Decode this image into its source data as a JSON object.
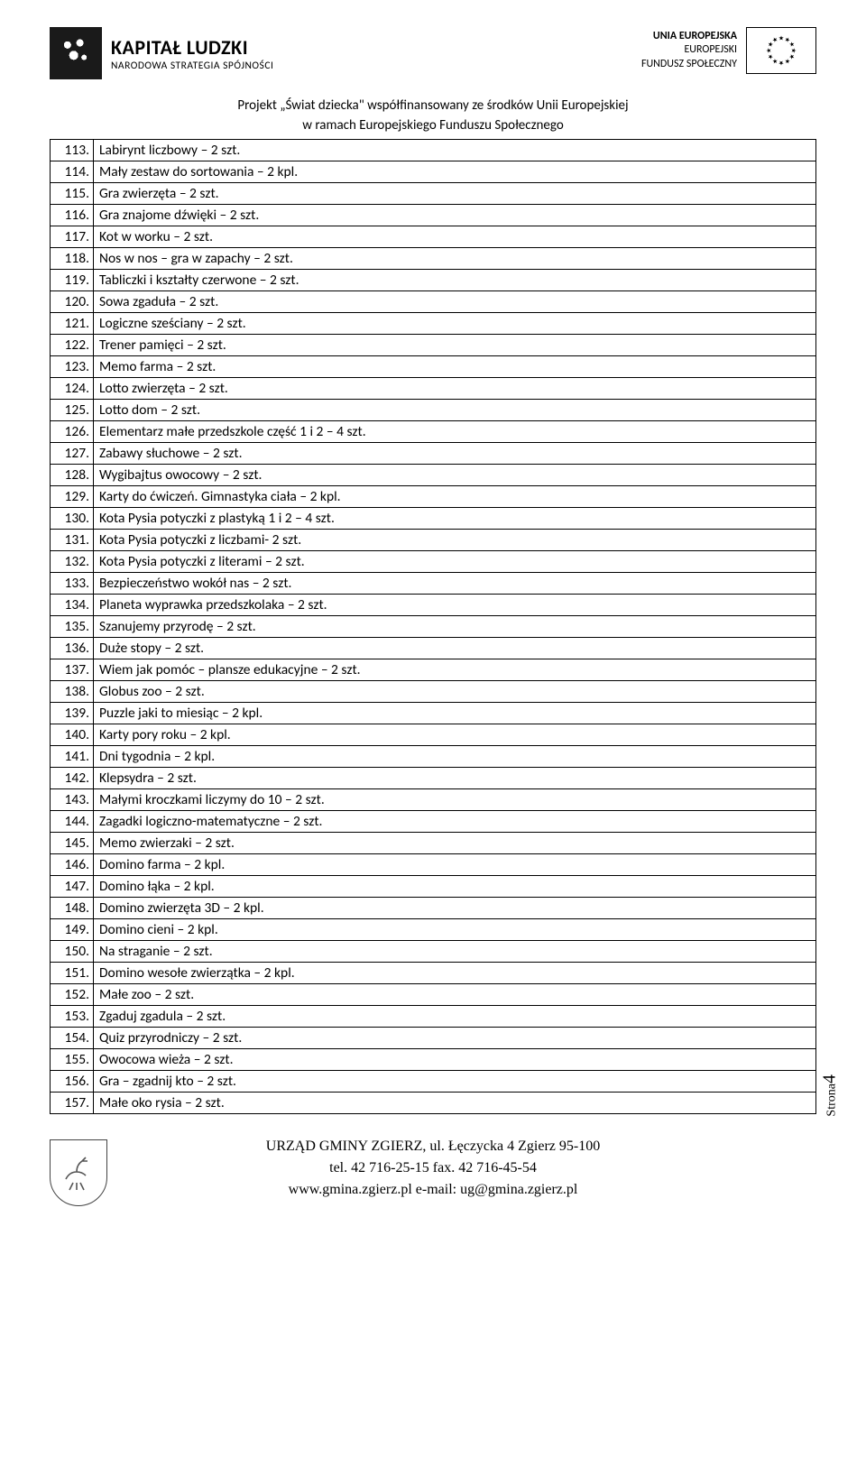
{
  "header": {
    "left_logo_title": "KAPITAŁ LUDZKI",
    "left_logo_subtitle": "NARODOWA STRATEGIA SPÓJNOŚCI",
    "right_line1": "UNIA EUROPEJSKA",
    "right_line2": "EUROPEJSKI",
    "right_line3": "FUNDUSZ SPOŁECZNY"
  },
  "project": {
    "line1": "Projekt „Świat dziecka\" współfinansowany ze środków Unii Europejskiej",
    "line2": "w ramach Europejskiego Funduszu Społecznego"
  },
  "rows": [
    {
      "n": "113.",
      "t": "Labirynt liczbowy – 2 szt."
    },
    {
      "n": "114.",
      "t": "Mały zestaw do sortowania – 2 kpl."
    },
    {
      "n": "115.",
      "t": "Gra  zwierzęta – 2 szt."
    },
    {
      "n": "116.",
      "t": "Gra  znajome dźwięki – 2 szt."
    },
    {
      "n": "117.",
      "t": "Kot w worku – 2 szt."
    },
    {
      "n": "118.",
      "t": "Nos w nos – gra w zapachy – 2 szt."
    },
    {
      "n": "119.",
      "t": "Tabliczki i kształty czerwone – 2 szt."
    },
    {
      "n": "120.",
      "t": "Sowa zgaduła – 2 szt."
    },
    {
      "n": "121.",
      "t": "Logiczne sześciany – 2 szt."
    },
    {
      "n": "122.",
      "t": "Trener pamięci – 2 szt."
    },
    {
      "n": "123.",
      "t": "Memo farma – 2 szt."
    },
    {
      "n": "124.",
      "t": "Lotto zwierzęta – 2 szt."
    },
    {
      "n": "125.",
      "t": "Lotto dom – 2 szt."
    },
    {
      "n": "126.",
      "t": "Elementarz małe przedszkole część 1 i 2 – 4 szt."
    },
    {
      "n": "127.",
      "t": "Zabawy słuchowe – 2 szt."
    },
    {
      "n": "128.",
      "t": "Wygibajtus owocowy – 2 szt."
    },
    {
      "n": "129.",
      "t": "Karty do ćwiczeń. Gimnastyka ciała – 2 kpl."
    },
    {
      "n": "130.",
      "t": "Kota Pysia potyczki z plastyką 1 i 2 – 4 szt."
    },
    {
      "n": "131.",
      "t": "Kota Pysia potyczki z liczbami- 2 szt."
    },
    {
      "n": "132.",
      "t": "Kota Pysia potyczki z literami – 2 szt."
    },
    {
      "n": "133.",
      "t": "Bezpieczeństwo wokół nas – 2 szt."
    },
    {
      "n": "134.",
      "t": "Planeta wyprawka przedszkolaka – 2 szt."
    },
    {
      "n": "135.",
      "t": "Szanujemy przyrodę – 2 szt."
    },
    {
      "n": "136.",
      "t": "Duże stopy – 2 szt."
    },
    {
      "n": "137.",
      "t": "Wiem jak pomóc – plansze edukacyjne – 2 szt."
    },
    {
      "n": "138.",
      "t": "Globus zoo – 2 szt."
    },
    {
      "n": "139.",
      "t": "Puzzle jaki to miesiąc – 2 kpl."
    },
    {
      "n": "140.",
      "t": "Karty pory roku – 2 kpl."
    },
    {
      "n": "141.",
      "t": "Dni tygodnia – 2 kpl."
    },
    {
      "n": "142.",
      "t": "Klepsydra – 2 szt."
    },
    {
      "n": "143.",
      "t": "Małymi kroczkami liczymy do 10 – 2 szt."
    },
    {
      "n": "144.",
      "t": "Zagadki logiczno-matematyczne – 2 szt."
    },
    {
      "n": "145.",
      "t": "Memo zwierzaki – 2 szt."
    },
    {
      "n": "146.",
      "t": "Domino farma – 2 kpl."
    },
    {
      "n": "147.",
      "t": "Domino łąka – 2 kpl."
    },
    {
      "n": "148.",
      "t": "Domino zwierzęta 3D – 2 kpl."
    },
    {
      "n": "149.",
      "t": "Domino cieni – 2 kpl."
    },
    {
      "n": "150.",
      "t": "Na straganie – 2 szt."
    },
    {
      "n": "151.",
      "t": "Domino wesołe zwierzątka – 2 kpl."
    },
    {
      "n": "152.",
      "t": "Małe zoo – 2 szt."
    },
    {
      "n": "153.",
      "t": "Zgaduj zgadula – 2 szt."
    },
    {
      "n": "154.",
      "t": "Quiz przyrodniczy – 2 szt."
    },
    {
      "n": "155.",
      "t": "Owocowa wieża – 2 szt."
    },
    {
      "n": "156.",
      "t": "Gra – zgadnij kto – 2 szt."
    },
    {
      "n": "157.",
      "t": "Małe oko rysia – 2 szt."
    }
  ],
  "footer": {
    "line1": "URZĄD GMINY ZGIERZ,  ul.  Łęczycka 4  Zgierz 95-100",
    "line2": "tel. 42 716-25-15    fax. 42 716-45-54",
    "line3": "www.gmina.zgierz.pl   e-mail: ug@gmina.zgierz.pl"
  },
  "page_label": "Strona",
  "page_number": "4"
}
